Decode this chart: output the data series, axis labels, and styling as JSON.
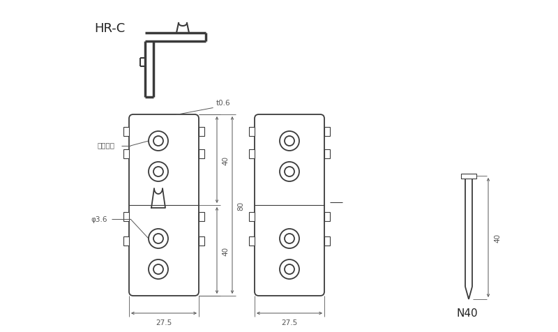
{
  "bg_color": "#ffffff",
  "line_color": "#3a3a3a",
  "dim_color": "#555555",
  "title": "HR-C",
  "label_t06": "t0.6",
  "label_emboss": "エンボス",
  "label_phi": "φ3.6",
  "label_40a": "40",
  "label_80": "80",
  "label_40b": "40",
  "label_275a": "27.5",
  "label_275b": "27.5",
  "label_nail": "N40",
  "label_nail_dim": "40"
}
